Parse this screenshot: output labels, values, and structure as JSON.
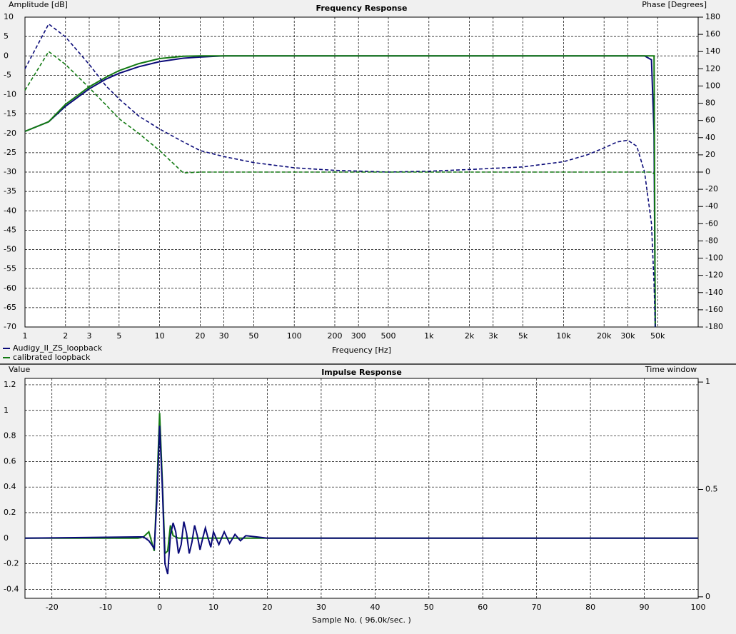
{
  "chart_data": [
    {
      "type": "line",
      "title": "Frequency Response",
      "ylabel": "Amplitude [dB]",
      "y2label": "Phase [Degrees]",
      "xlabel": "Frequency [Hz]",
      "xlog": true,
      "grid": true,
      "legend": "bottom-left",
      "xlim": [
        1,
        100000
      ],
      "xticks": [
        1,
        2,
        3,
        5,
        10,
        20,
        30,
        50,
        100,
        200,
        300,
        500,
        {
          "value": 1000,
          "label": "1k"
        },
        {
          "value": 2000,
          "label": "2k"
        },
        {
          "value": 3000,
          "label": "3k"
        },
        {
          "value": 5000,
          "label": "5k"
        },
        {
          "value": 10000,
          "label": "10k"
        },
        {
          "value": 20000,
          "label": "20k"
        },
        {
          "value": 30000,
          "label": "30k"
        },
        {
          "value": 50000,
          "label": "50k"
        }
      ],
      "ylim": [
        -70,
        10
      ],
      "yticks": [
        10,
        5,
        0,
        -5,
        -10,
        -15,
        -20,
        -25,
        -30,
        -35,
        -40,
        -45,
        -50,
        -55,
        -60,
        -65,
        -70
      ],
      "y2lim": [
        -180,
        180
      ],
      "y2ticks": [
        180,
        160,
        140,
        120,
        100,
        80,
        60,
        40,
        20,
        0,
        -20,
        -40,
        -60,
        -80,
        -100,
        -120,
        -140,
        -160,
        -180
      ],
      "x": [
        1,
        1.5,
        2,
        3,
        4,
        5,
        7,
        10,
        15,
        20,
        30,
        50,
        100,
        200,
        500,
        1000,
        2000,
        5000,
        10000,
        15000,
        20000,
        25000,
        30000,
        35000,
        40000,
        45000,
        47000,
        48000
      ],
      "series": [
        {
          "name": "Audigy_II_ZS_loopback",
          "color": "#0a0a78",
          "values": [
            -19.5,
            -17,
            -13,
            -8.5,
            -6,
            -4.5,
            -2.8,
            -1.5,
            -0.6,
            -0.3,
            0,
            0,
            0,
            0,
            0,
            0,
            0,
            0,
            0,
            0,
            0,
            0,
            0,
            0,
            0,
            -1,
            -20,
            -70
          ]
        },
        {
          "name": "calibrated loopback",
          "color": "#127a12",
          "values": [
            -19.5,
            -17,
            -12.5,
            -8,
            -5.5,
            -3.8,
            -2,
            -0.7,
            -0.1,
            0,
            0,
            0,
            0,
            0,
            0,
            0,
            0,
            0,
            0,
            0,
            0,
            0,
            0,
            0,
            0,
            0,
            0,
            -70
          ]
        },
        {
          "color": "#0a0a78",
          "axis": "y2",
          "dash": true,
          "values": [
            120,
            172,
            157,
            125,
            100,
            85,
            65,
            50,
            35,
            25,
            18,
            11,
            5,
            2,
            0,
            1,
            3,
            6,
            12,
            20,
            28,
            35,
            37,
            30,
            0,
            -60,
            -130,
            -180
          ]
        },
        {
          "color": "#127a12",
          "axis": "y2",
          "dash": true,
          "values": [
            95,
            140,
            125,
            98,
            78,
            62,
            45,
            25,
            -1,
            0,
            0,
            0,
            0,
            0,
            0,
            0,
            0,
            0,
            0,
            0,
            0,
            0,
            0,
            0,
            0,
            0,
            -2,
            -2
          ]
        }
      ]
    },
    {
      "type": "line",
      "title": "Impulse Response",
      "ylabel": "Value",
      "y2label": "Time window",
      "xlabel": "Sample No. ( 96.0k/sec. )",
      "grid": true,
      "xlim": [
        -25,
        100
      ],
      "xticks": [
        -20,
        -10,
        0,
        10,
        20,
        30,
        40,
        50,
        60,
        70,
        80,
        90,
        100
      ],
      "ylim": [
        -0.47,
        1.25
      ],
      "yticks": [
        1.2,
        1,
        0.8,
        0.6,
        0.4,
        0.2,
        0,
        -0.2,
        -0.4
      ],
      "y2lim": [
        -0.007,
        1.017
      ],
      "y2ticks": [
        1,
        0.5,
        0
      ],
      "x": [
        -25,
        -4,
        -3,
        -2,
        -1,
        -0.5,
        0,
        0.5,
        1,
        1.5,
        2,
        2.5,
        3,
        3.5,
        4,
        4.5,
        5,
        5.5,
        6,
        6.5,
        7,
        7.5,
        8,
        8.5,
        9,
        9.5,
        10,
        11,
        12,
        13,
        14,
        15,
        16,
        18,
        20,
        100
      ],
      "series": [
        {
          "color": "#127a12",
          "values": [
            0,
            0,
            0.01,
            0.05,
            -0.1,
            0.4,
            0.98,
            0.45,
            -0.12,
            -0.1,
            0.1,
            0.02,
            0.01,
            0,
            0,
            0,
            0,
            0,
            0,
            0,
            0,
            0,
            0,
            0,
            0,
            0,
            0,
            0,
            0,
            0,
            0,
            0,
            0,
            0,
            0,
            0
          ]
        },
        {
          "color": "#0a0a78",
          "values": [
            0,
            0.01,
            0.01,
            -0.02,
            -0.08,
            0.3,
            0.88,
            0.4,
            -0.2,
            -0.28,
            0.02,
            0.12,
            0.05,
            -0.12,
            -0.05,
            0.13,
            0.04,
            -0.12,
            -0.03,
            0.1,
            0.02,
            -0.09,
            0,
            0.08,
            0,
            -0.07,
            0.05,
            -0.05,
            0.05,
            -0.04,
            0.03,
            -0.02,
            0.02,
            0.01,
            0,
            0
          ]
        }
      ]
    }
  ]
}
